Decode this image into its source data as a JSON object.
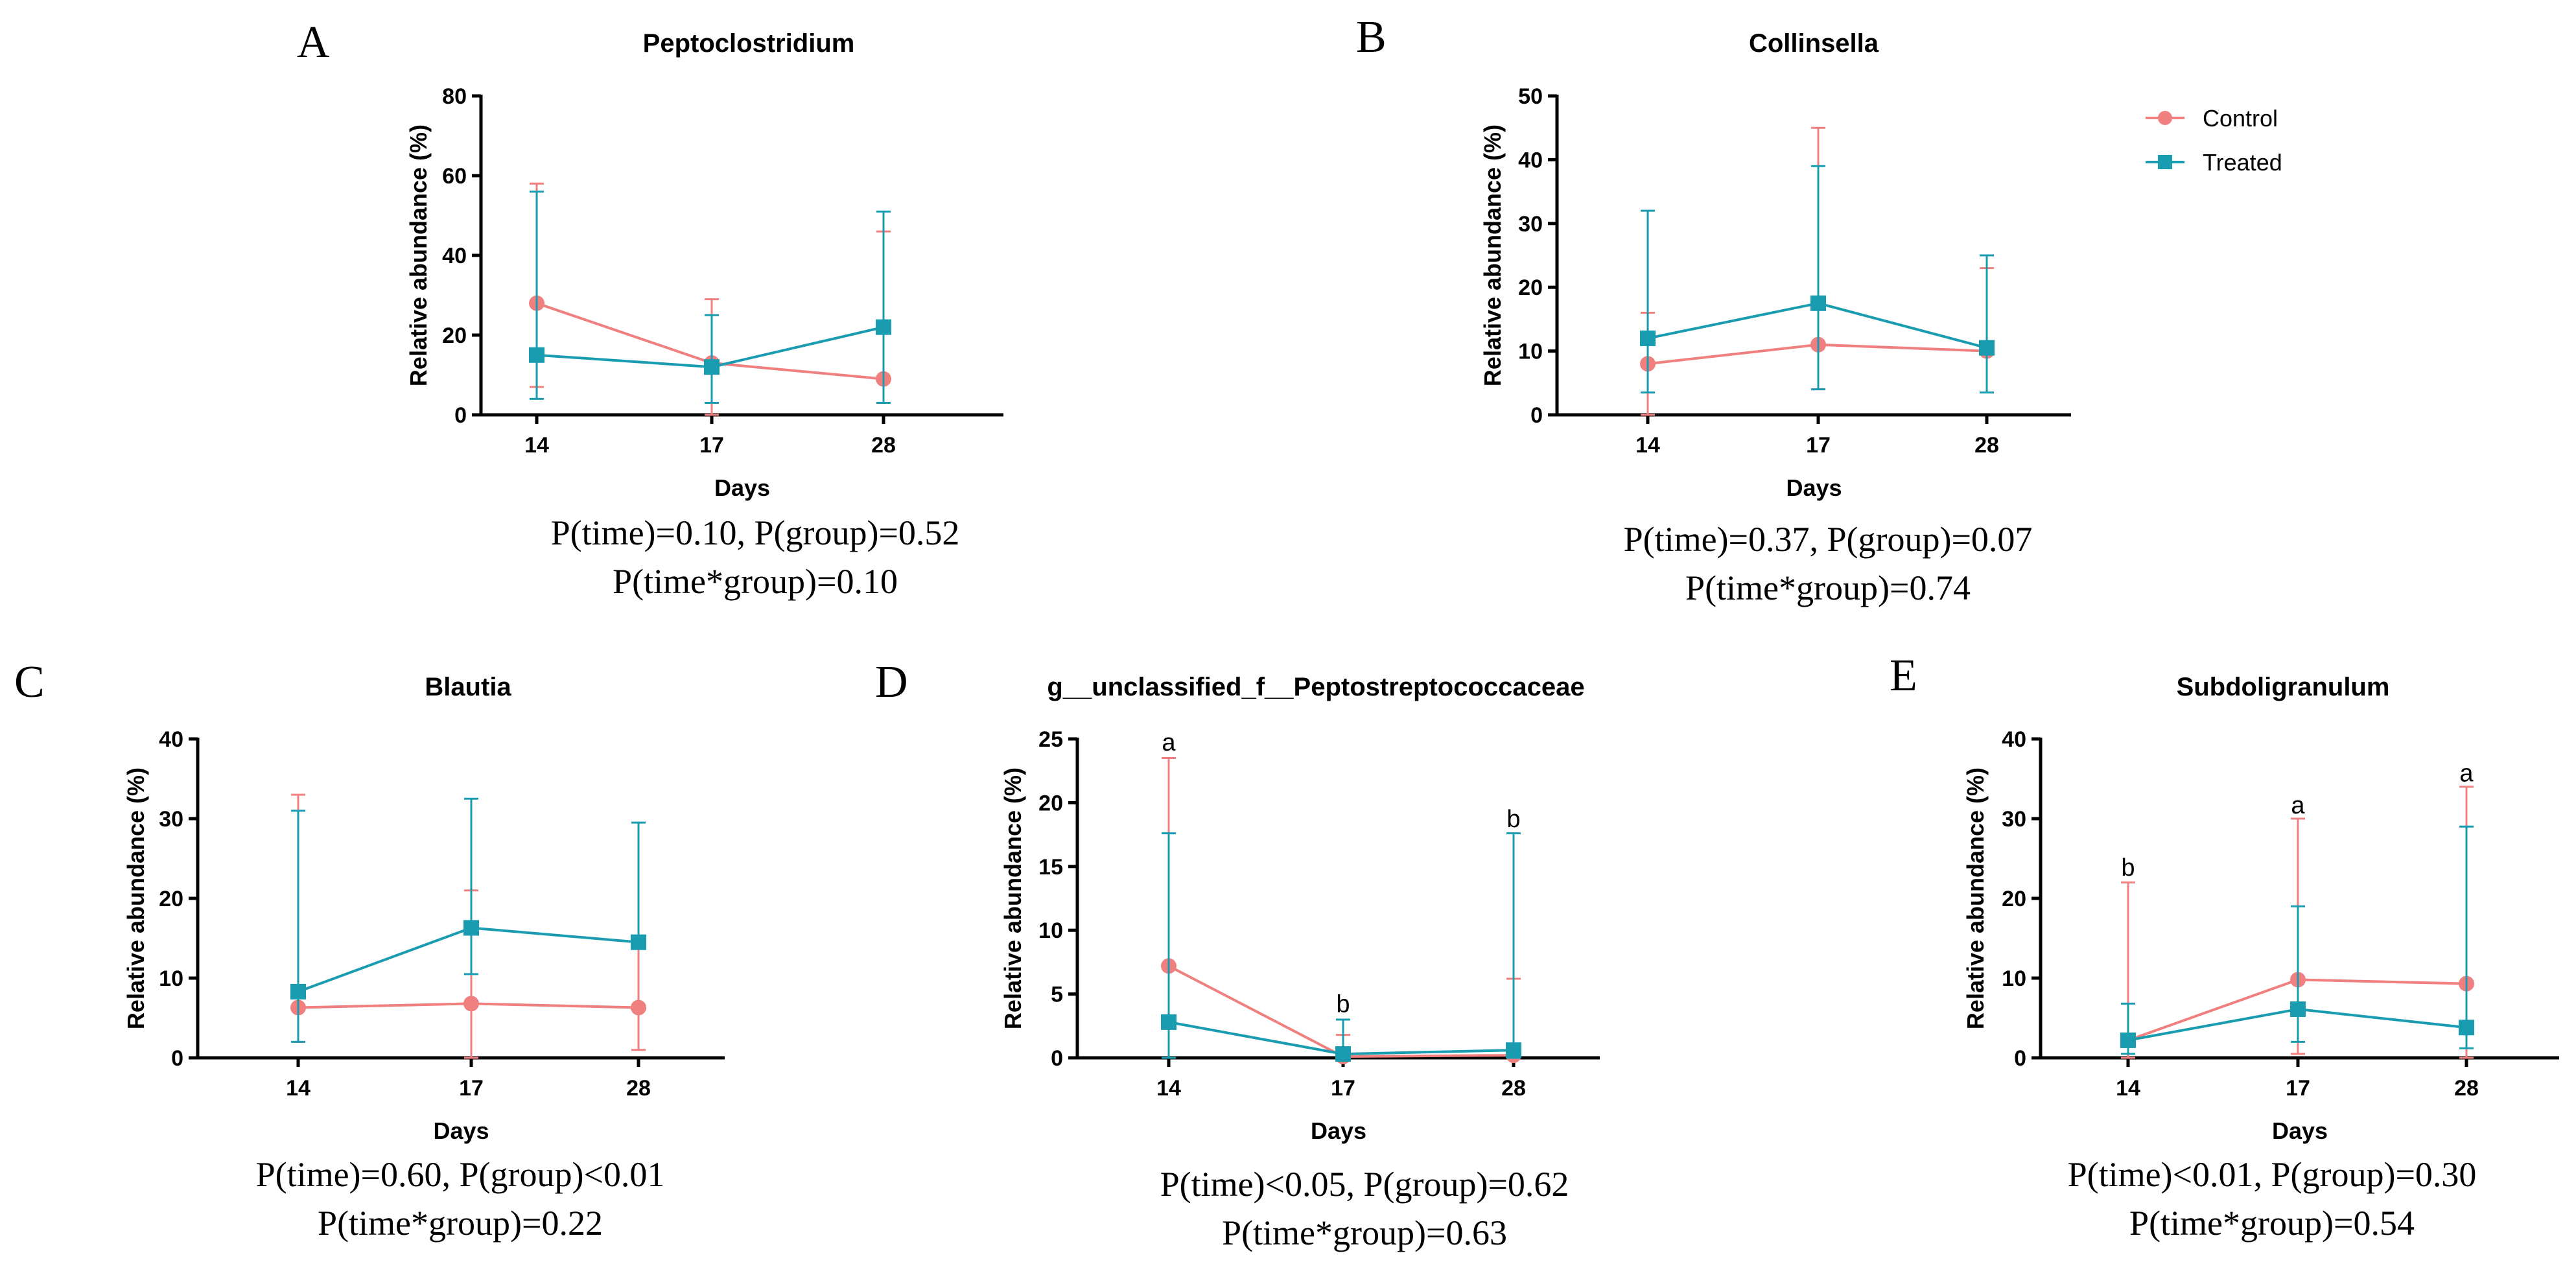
{
  "legend": {
    "series": [
      {
        "name": "Control",
        "color": "#f08080",
        "marker": "circle"
      },
      {
        "name": "Treated",
        "color": "#1a9cb0",
        "marker": "square"
      }
    ]
  },
  "chart_data": [
    {
      "panel": "A",
      "type": "line",
      "title": "Peptoclostridium",
      "xlabel": "Days",
      "ylabel": "Relative abundance (%)",
      "categories": [
        "14",
        "17",
        "28"
      ],
      "ylim": [
        0,
        80
      ],
      "yticks": [
        0,
        20,
        40,
        60,
        80
      ],
      "series": [
        {
          "name": "Control",
          "values": [
            28,
            13,
            9
          ],
          "err_low": [
            7,
            0,
            3
          ],
          "err_high": [
            58,
            29,
            46
          ]
        },
        {
          "name": "Treated",
          "values": [
            15,
            12,
            22
          ],
          "err_low": [
            4,
            3,
            3
          ],
          "err_high": [
            56,
            25,
            51
          ]
        }
      ],
      "annotations": [],
      "stats": [
        "P(time)=0.10, P(group)=0.52",
        "P(time*group)=0.10"
      ]
    },
    {
      "panel": "B",
      "type": "line",
      "title": "Collinsella",
      "xlabel": "Days",
      "ylabel": "Relative abundance (%)",
      "categories": [
        "14",
        "17",
        "28"
      ],
      "ylim": [
        0,
        50
      ],
      "yticks": [
        0,
        10,
        20,
        30,
        40,
        50
      ],
      "series": [
        {
          "name": "Control",
          "values": [
            8,
            11,
            10
          ],
          "err_low": [
            0,
            4,
            3.5
          ],
          "err_high": [
            16,
            45,
            23
          ]
        },
        {
          "name": "Treated",
          "values": [
            12,
            17.5,
            10.5
          ],
          "err_low": [
            3.5,
            4,
            3.5
          ],
          "err_high": [
            32,
            39,
            25
          ]
        }
      ],
      "annotations": [],
      "stats": [
        "P(time)=0.37, P(group)=0.07",
        "P(time*group)=0.74"
      ]
    },
    {
      "panel": "C",
      "type": "line",
      "title": "Blautia",
      "xlabel": "Days",
      "ylabel": "Relative abundance (%)",
      "categories": [
        "14",
        "17",
        "28"
      ],
      "ylim": [
        0,
        40
      ],
      "yticks": [
        0,
        10,
        20,
        30,
        40
      ],
      "series": [
        {
          "name": "Control",
          "values": [
            6.3,
            6.8,
            6.3
          ],
          "err_low": [
            2,
            0,
            1
          ],
          "err_high": [
            33,
            21,
            14
          ]
        },
        {
          "name": "Treated",
          "values": [
            8.3,
            16.3,
            14.5
          ],
          "err_low": [
            2,
            10.5,
            14.5
          ],
          "err_high": [
            31,
            32.5,
            29.5
          ]
        }
      ],
      "annotations": [],
      "stats": [
        "P(time)=0.60, P(group)<0.01",
        "P(time*group)=0.22"
      ]
    },
    {
      "panel": "D",
      "type": "line",
      "title": "g__unclassified_f__Peptostreptococcaceae",
      "xlabel": "Days",
      "ylabel": "Relative abundance (%)",
      "categories": [
        "14",
        "17",
        "28"
      ],
      "ylim": [
        0,
        25
      ],
      "yticks": [
        0,
        5,
        10,
        15,
        20,
        25
      ],
      "series": [
        {
          "name": "Control",
          "values": [
            7.2,
            0.1,
            0.2
          ],
          "err_low": [
            0,
            0,
            0
          ],
          "err_high": [
            23.5,
            1.8,
            6.2
          ]
        },
        {
          "name": "Treated",
          "values": [
            2.8,
            0.3,
            0.6
          ],
          "err_low": [
            0,
            0,
            0
          ],
          "err_high": [
            17.6,
            3.0,
            17.6
          ]
        }
      ],
      "annotations": [
        {
          "text": "a",
          "category": "14",
          "y": 24.8
        },
        {
          "text": "b",
          "category": "17",
          "y": 4.3
        },
        {
          "text": "b",
          "category": "28",
          "y": 18.8
        }
      ],
      "stats": [
        "P(time)<0.05, P(group)=0.62",
        "P(time*group)=0.63"
      ]
    },
    {
      "panel": "E",
      "type": "line",
      "title": "Subdoligranulum",
      "xlabel": "Days",
      "ylabel": "Relative abundance (%)",
      "categories": [
        "14",
        "17",
        "28"
      ],
      "ylim": [
        0,
        40
      ],
      "yticks": [
        0,
        10,
        20,
        30,
        40
      ],
      "series": [
        {
          "name": "Control",
          "values": [
            2.2,
            9.8,
            9.3
          ],
          "err_low": [
            0,
            0.5,
            0
          ],
          "err_high": [
            22,
            30,
            34
          ]
        },
        {
          "name": "Treated",
          "values": [
            2.2,
            6.1,
            3.8
          ],
          "err_low": [
            0.5,
            2,
            1.2
          ],
          "err_high": [
            6.8,
            19,
            29
          ]
        }
      ],
      "annotations": [
        {
          "text": "b",
          "category": "14",
          "y": 24
        },
        {
          "text": "a",
          "category": "17",
          "y": 31.8
        },
        {
          "text": "a",
          "category": "28",
          "y": 35.8
        }
      ],
      "stats": [
        "P(time)<0.01, P(group)=0.30",
        "P(time*group)=0.54"
      ]
    }
  ]
}
